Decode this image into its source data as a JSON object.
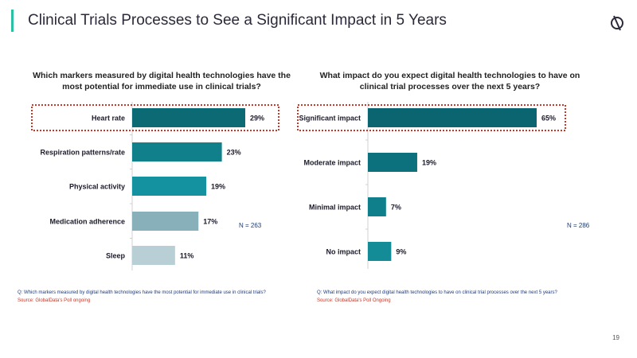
{
  "header": {
    "title": "Clinical Trials Processes to See a Significant Impact in 5 Years",
    "logo_icon": "globaldata-logo-icon"
  },
  "page_number": "19",
  "chart_data": [
    {
      "type": "bar",
      "orientation": "horizontal",
      "title": "Which markers measured by digital health technologies have the most potential for immediate use in clinical trials?",
      "categories": [
        "Heart rate",
        "Respiration patterns/rate",
        "Physical activity",
        "Medication adherence",
        "Sleep"
      ],
      "values": [
        29,
        23,
        19,
        17,
        11
      ],
      "data_labels": [
        "29%",
        "23%",
        "19%",
        "17%",
        "11%"
      ],
      "colors": [
        "#0b6a73",
        "#10808a",
        "#1592a0",
        "#88b0bb",
        "#b8cfd5"
      ],
      "highlighted": "Heart rate",
      "highlight_color": "#c0392b",
      "xlim": [
        0,
        40
      ],
      "grid": false,
      "note": "N = 263",
      "footnote_question": "Q: Which markers measured by digital health technologies have the most potential for immediate use in clinical trials?",
      "footnote_source": "Source: GlobalData's Poll ongoing"
    },
    {
      "type": "bar",
      "orientation": "horizontal",
      "title": "What impact do you expect digital health technologies to have on clinical trial processes over the next 5 years?",
      "categories": [
        "Significant impact",
        "Moderate impact",
        "Minimal impact",
        "No impact"
      ],
      "values": [
        65,
        19,
        7,
        9
      ],
      "data_labels": [
        "65%",
        "19%",
        "7%",
        "9%"
      ],
      "colors": [
        "#0b6570",
        "#0c717c",
        "#0f808b",
        "#138c98"
      ],
      "highlighted": "Significant impact",
      "highlight_color": "#c0392b",
      "xlim": [
        0,
        80
      ],
      "grid": false,
      "note": "N = 286",
      "footnote_question": "Q: What impact do you expect digital health technologies to have on clinical trial processes over the next 5 years?",
      "footnote_source": "Source: GlobalData's Poll Ongoing"
    }
  ]
}
